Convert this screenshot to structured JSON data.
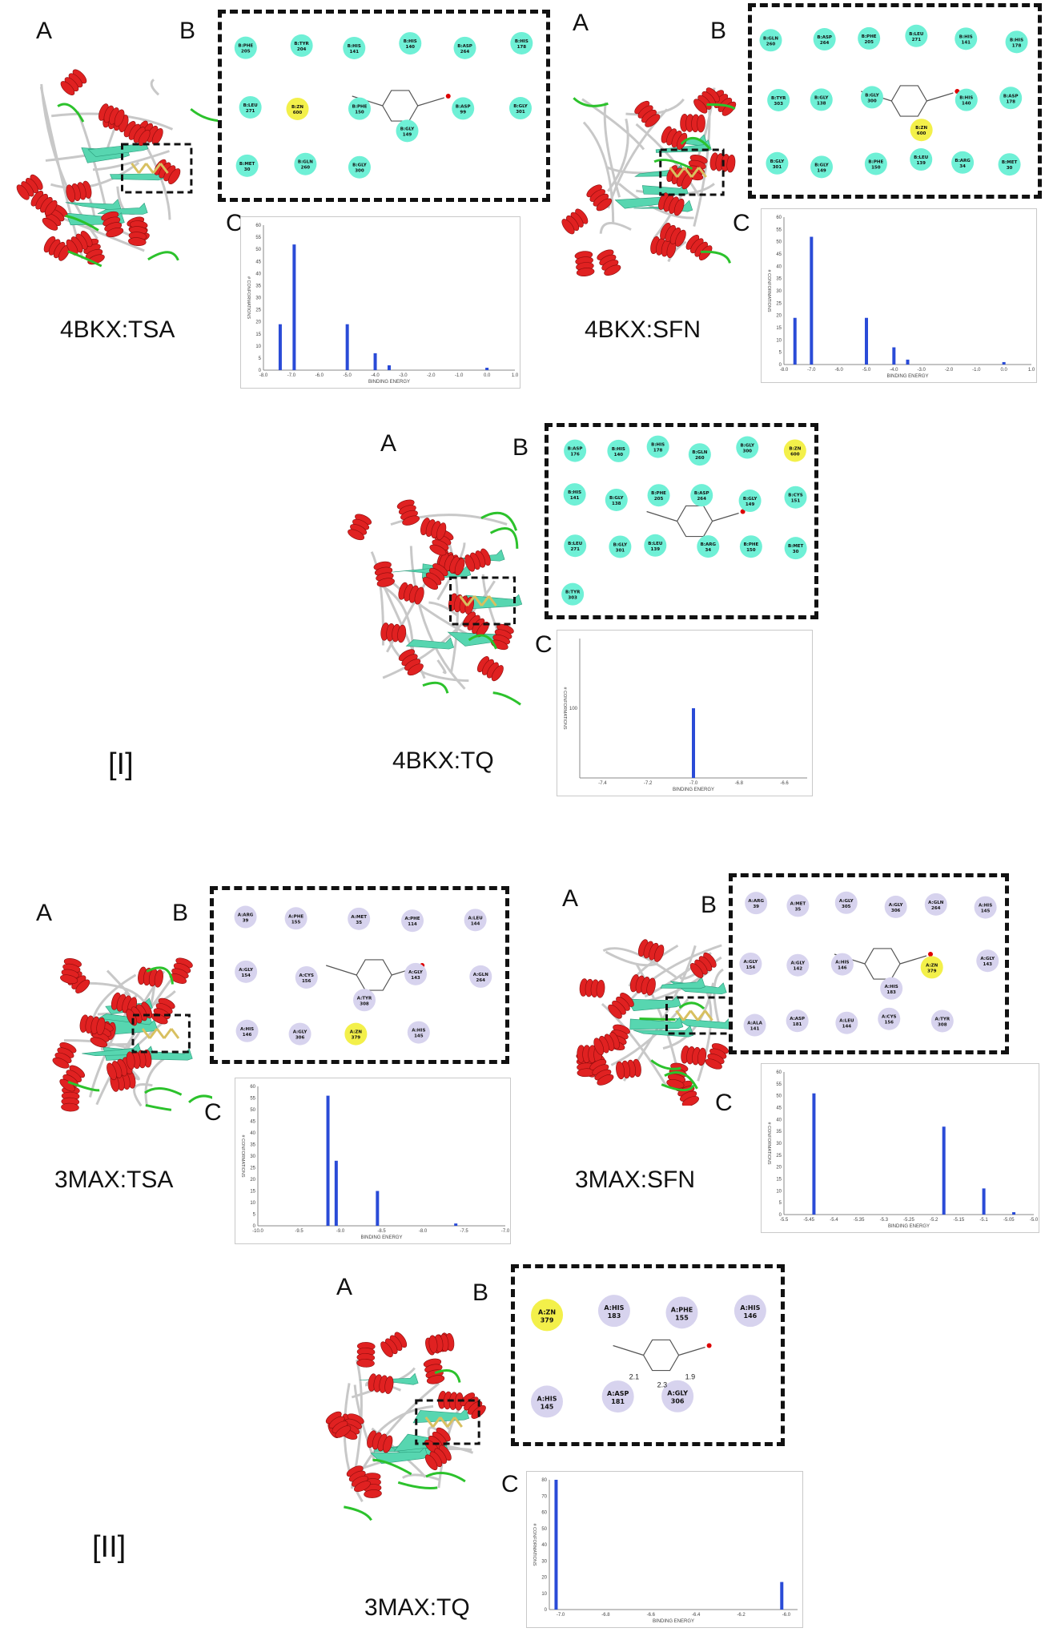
{
  "section_labels": {
    "first": "[I]",
    "second": "[II]"
  },
  "panel_letters": {
    "a": "A",
    "b": "B",
    "c": "C"
  },
  "colors": {
    "helix": "#e02121",
    "sheet": "#57d6b0",
    "loop_green": "#2cc22c",
    "coil": "#c8c8c8",
    "residue_cyan": "#6ff0d6",
    "residue_lavender": "#d7d3ee",
    "zinc": "#f3f04a",
    "bar": "#2a4bd7"
  },
  "complexes": [
    {
      "label": "4BKX:TSA",
      "residues": [
        "B:PHE 205",
        "B:TYR 204",
        "B:HIS 141",
        "B:HIS 140",
        "B:ASP 264",
        "B:HIS 178",
        "B:LEU 271",
        "B:ZN 600",
        "B:PHE 150",
        "B:GLY 149",
        "B:ASP 99",
        "B:GLY 301",
        "B:MET 30",
        "B:GLN 260",
        "B:GLY 300"
      ],
      "chart_data": {
        "type": "bar",
        "xlabel": "BINDING ENERGY",
        "ylabel": "# CONFORMATIONS",
        "xlim": [
          -8.0,
          1.0
        ],
        "ylim": [
          0,
          60
        ],
        "xticks": [
          "-8.0",
          "-7.0",
          "-6.0",
          "-5.0",
          "-4.0",
          "-3.0",
          "-2.0",
          "-1.0",
          "0.0",
          "1.0"
        ],
        "yticks": [
          "0",
          "5",
          "10",
          "15",
          "20",
          "25",
          "30",
          "35",
          "40",
          "45",
          "50",
          "55",
          "60"
        ],
        "x": [
          -7.4,
          -6.9,
          -5.0,
          -4.0,
          -3.5,
          0.0
        ],
        "values": [
          19,
          52,
          19,
          7,
          2,
          1
        ]
      }
    },
    {
      "label": "4BKX:SFN",
      "residues": [
        "B:GLN 260",
        "B:ASP 264",
        "B:PHE 205",
        "B:LEU 271",
        "B:HIS 141",
        "B:HIS 178",
        "B:TYR 303",
        "B:GLY 138",
        "B:GLY 300",
        "B:ZN 600",
        "B:HIS 140",
        "B:ASP 178",
        "B:GLY 301",
        "B:GLY 149",
        "B:PHE 150",
        "B:LEU 139",
        "B:ARG 34",
        "B:MET 30"
      ],
      "chart_data": {
        "type": "bar",
        "xlabel": "BINDING ENERGY",
        "ylabel": "# CONFORMATIONS",
        "xlim": [
          -8.0,
          1.0
        ],
        "ylim": [
          0,
          60
        ],
        "xticks": [
          "-8.0",
          "-7.0",
          "-6.0",
          "-5.0",
          "-4.0",
          "-3.0",
          "-2.0",
          "-1.0",
          "0.0",
          "1.0"
        ],
        "yticks": [
          "0",
          "5",
          "10",
          "15",
          "20",
          "25",
          "30",
          "35",
          "40",
          "45",
          "50",
          "55",
          "60"
        ],
        "x": [
          -7.6,
          -7.0,
          -5.0,
          -4.0,
          -3.5,
          0.0
        ],
        "values": [
          19,
          52,
          19,
          7,
          2,
          1
        ]
      }
    },
    {
      "label": "4BKX:TQ",
      "residues": [
        "B:ASP 176",
        "B:HIS 140",
        "B:HIS 178",
        "B:GLN 260",
        "B:GLY 300",
        "B:ZN 600",
        "B:HIS 141",
        "B:GLY 138",
        "B:PHE 205",
        "B:ASP 264",
        "B:GLY 149",
        "B:CYS 151",
        "B:LEU 271",
        "B:GLY 301",
        "B:LEU 139",
        "B:ARG 34",
        "B:PHE 150",
        "B:MET 30",
        "B:TYR 303"
      ],
      "chart_data": {
        "type": "bar",
        "xlabel": "BINDING ENERGY",
        "ylabel": "# CONFORMATIONS",
        "xlim": [
          -7.5,
          -6.5
        ],
        "ylim": [
          0,
          200
        ],
        "xticks": [
          "-7.4",
          "-7.2",
          "-7.0",
          "-6.8",
          "-6.6"
        ],
        "yticks": [
          "100"
        ],
        "x": [
          -7.0
        ],
        "values": [
          100
        ]
      }
    },
    {
      "label": "3MAX:TSA",
      "residues": [
        "A:ARG 39",
        "A:PHE 155",
        "A:MET 35",
        "A:PHE 114",
        "A:LEU 144",
        "A:GLY 154",
        "A:CYS 156",
        "A:TYR 308",
        "A:GLY 143",
        "A:GLN 264",
        "A:HIS 146",
        "A:GLY 306",
        "A:ZN 379",
        "A:HIS 145"
      ],
      "chart_data": {
        "type": "bar",
        "xlabel": "BINDING ENERGY",
        "ylabel": "# CONFORMATIONS",
        "xlim": [
          -10.0,
          -7.0
        ],
        "ylim": [
          0,
          60
        ],
        "xticks": [
          "-10.0",
          "-9.5",
          "-9.0",
          "-8.5",
          "-8.0",
          "-7.5",
          "-7.0"
        ],
        "yticks": [
          "0",
          "5",
          "10",
          "15",
          "20",
          "25",
          "30",
          "35",
          "40",
          "45",
          "50",
          "55",
          "60"
        ],
        "x": [
          -9.15,
          -9.05,
          -8.55,
          -7.6
        ],
        "values": [
          56,
          28,
          15,
          1
        ]
      }
    },
    {
      "label": "3MAX:SFN",
      "residues": [
        "A:ARG 39",
        "A:MET 35",
        "A:GLY 305",
        "A:GLY 306",
        "A:GLN 264",
        "A:HIS 145",
        "A:GLY 154",
        "A:GLY 142",
        "A:HIS 146",
        "A:HIS 183",
        "A:ZN 379",
        "A:GLY 143",
        "A:ALA 141",
        "A:ASP 181",
        "A:LEU 144",
        "A:CYS 156",
        "A:TYR 308"
      ],
      "chart_data": {
        "type": "bar",
        "xlabel": "BINDING ENERGY",
        "ylabel": "# CONFORMATIONS",
        "xlim": [
          -5.5,
          -5.0
        ],
        "ylim": [
          0,
          60
        ],
        "xticks": [
          "-5.5",
          "-5.45",
          "-5.4",
          "-5.35",
          "-5.3",
          "-5.25",
          "-5.2",
          "-5.15",
          "-5.1",
          "-5.05",
          "-5.0"
        ],
        "yticks": [
          "0",
          "5",
          "10",
          "15",
          "20",
          "25",
          "30",
          "35",
          "40",
          "45",
          "50",
          "55",
          "60"
        ],
        "x": [
          -5.44,
          -5.18,
          -5.1,
          -5.04
        ],
        "values": [
          51,
          37,
          11,
          1
        ]
      }
    },
    {
      "label": "3MAX:TQ",
      "residues": [
        "A:ZN 379",
        "A:HIS 183",
        "A:PHE 155",
        "A:HIS 146",
        "A:HIS 145",
        "A:ASP 181",
        "A:GLY 306"
      ],
      "distances": [
        "2.1",
        "2.3",
        "1.9"
      ],
      "chart_data": {
        "type": "bar",
        "xlabel": "BINDING ENERGY",
        "ylabel": "# CONFORMATIONS",
        "xlim": [
          -7.05,
          -5.95
        ],
        "ylim": [
          0,
          80
        ],
        "xticks": [
          "-7.0",
          "-6.8",
          "-6.6",
          "-6.4",
          "-6.2",
          "-6.0"
        ],
        "yticks": [
          "0",
          "10",
          "20",
          "30",
          "40",
          "50",
          "60",
          "70",
          "80"
        ],
        "x": [
          -7.02,
          -6.02
        ],
        "values": [
          80,
          17
        ]
      }
    }
  ]
}
